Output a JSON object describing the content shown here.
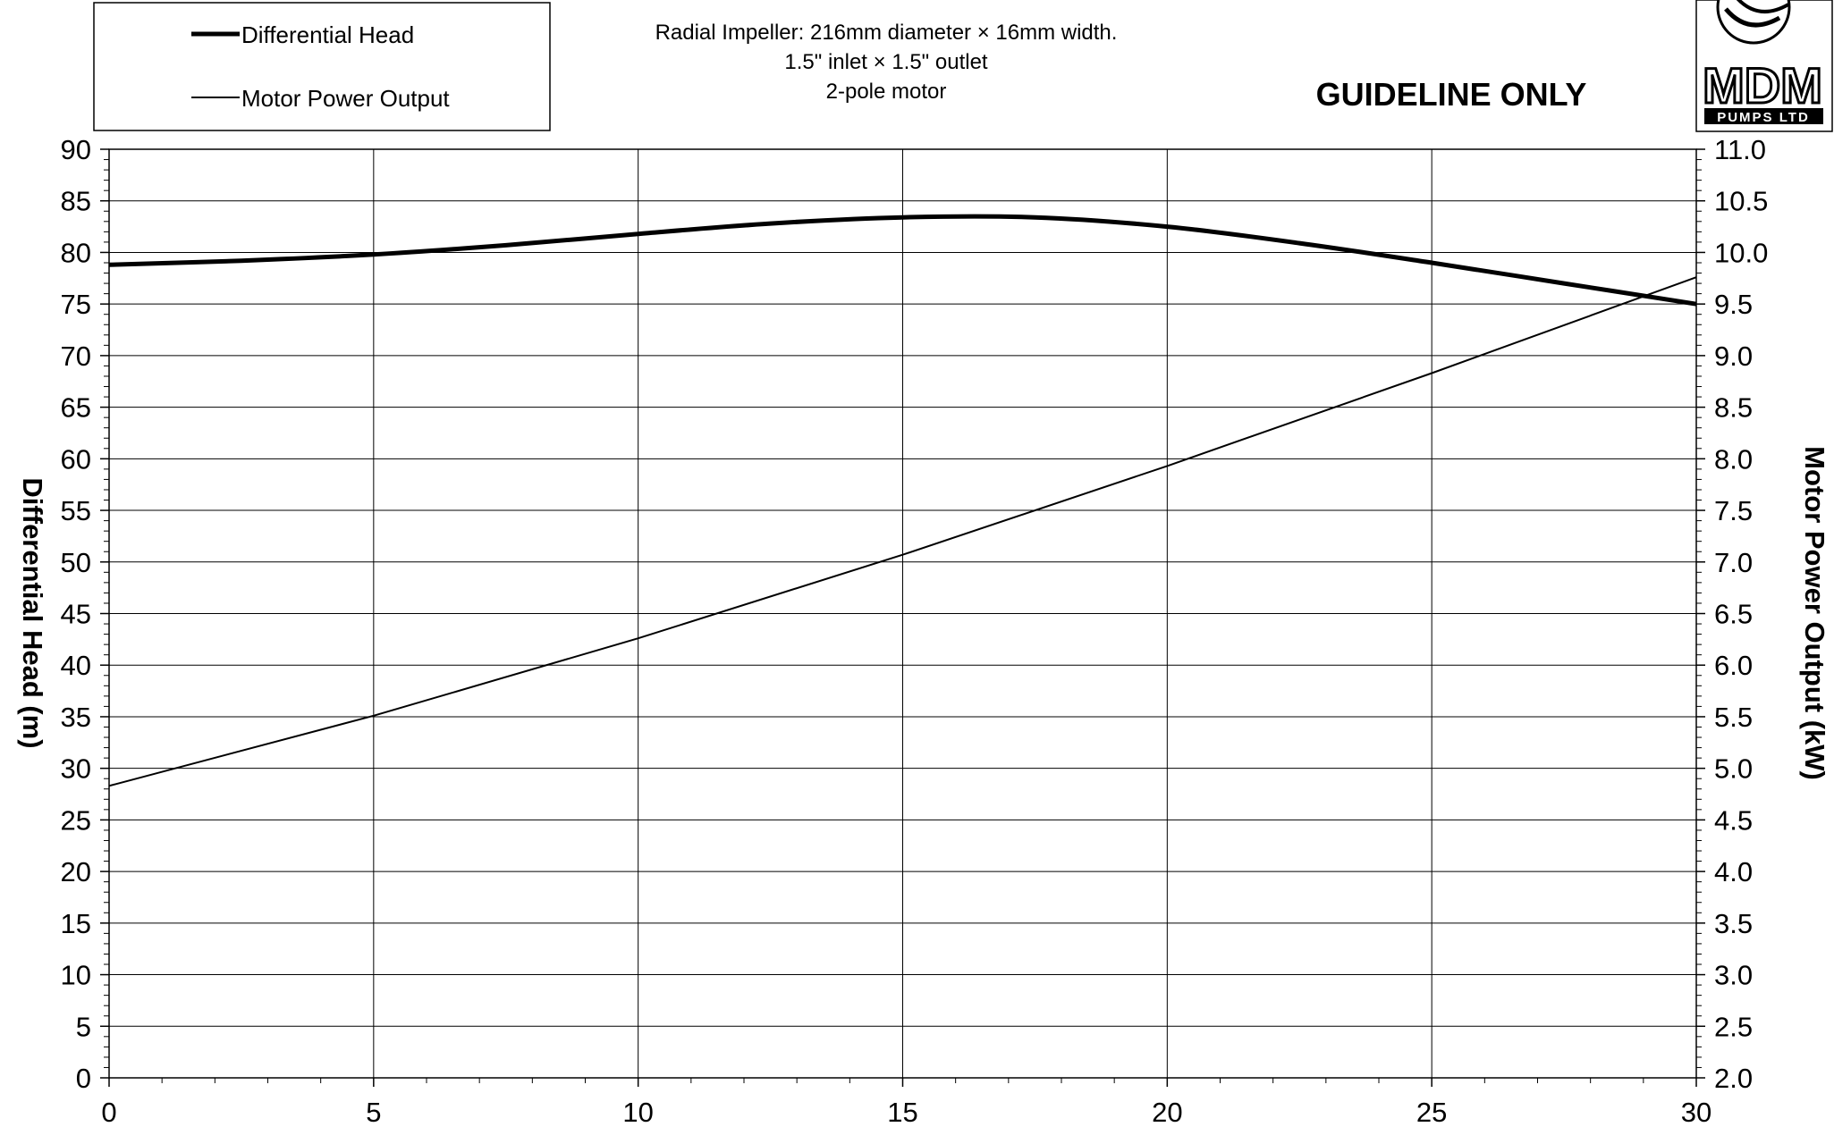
{
  "legend": {
    "items": [
      {
        "label": "Differential Head"
      },
      {
        "label": "Motor Power Output"
      }
    ]
  },
  "description": {
    "line1": "Radial Impeller: 216mm diameter × 16mm width.",
    "line2": "1.5\" inlet × 1.5\" outlet",
    "line3": "2-pole motor"
  },
  "guideline_text": "GUIDELINE ONLY",
  "logo": {
    "text": "MDM",
    "subtext": "PUMPS LTD"
  },
  "chart_data": {
    "type": "line",
    "ylabel": "Differential Head (m)",
    "y2label": "Motor Power Output (kW)",
    "xlim": [
      0,
      30
    ],
    "ylim": [
      0,
      90
    ],
    "y2lim": [
      2.0,
      11.0
    ],
    "x_ticks": [
      "0",
      "5",
      "10",
      "15",
      "20",
      "25",
      "30"
    ],
    "y_ticks": [
      "0",
      "5",
      "10",
      "15",
      "20",
      "25",
      "30",
      "35",
      "40",
      "45",
      "50",
      "55",
      "60",
      "65",
      "70",
      "75",
      "80",
      "85",
      "90"
    ],
    "y2_ticks": [
      "2.0",
      "2.5",
      "3.0",
      "3.5",
      "4.0",
      "4.5",
      "5.0",
      "5.5",
      "6.0",
      "6.5",
      "7.0",
      "7.5",
      "8.0",
      "8.5",
      "9.0",
      "9.5",
      "10.0",
      "10.5",
      "11.0"
    ],
    "grid": true,
    "series": [
      {
        "name": "Differential Head",
        "axis": "left",
        "x": [
          0,
          2.5,
          5,
          7.5,
          10,
          12.5,
          15,
          17.5,
          20,
          22.5,
          25,
          27.5,
          30
        ],
        "values": [
          78.8,
          79.2,
          79.8,
          80.7,
          81.8,
          82.8,
          83.4,
          83.4,
          82.5,
          80.9,
          79.0,
          77.0,
          75.0
        ]
      },
      {
        "name": "Motor Power Output",
        "axis": "right",
        "x": [
          0,
          5,
          10,
          15,
          20,
          25,
          30
        ],
        "values": [
          4.83,
          5.51,
          6.26,
          7.07,
          7.93,
          8.83,
          9.76
        ]
      }
    ],
    "grid_color": "#000000",
    "line_color": "#000000"
  }
}
